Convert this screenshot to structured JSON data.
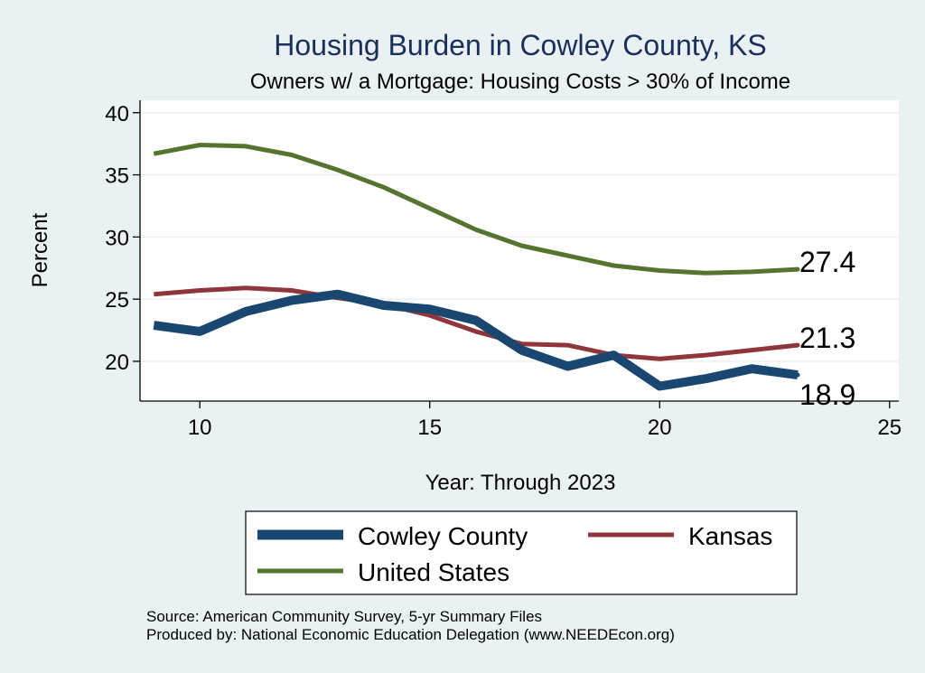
{
  "chart_data": {
    "type": "line",
    "title": "Housing Burden in Cowley County, KS",
    "subtitle": "Owners w/ a Mortgage: Housing Costs > 30% of Income",
    "xlabel": "Year: Through 2023",
    "ylabel": "Percent",
    "xlim": [
      8.7,
      25.2
    ],
    "ylim": [
      16.8,
      41.0
    ],
    "xticks": [
      10,
      15,
      20,
      25
    ],
    "yticks": [
      20,
      25,
      30,
      35,
      40
    ],
    "grid": true,
    "legend_position": "bottom",
    "x": [
      9,
      10,
      11,
      12,
      13,
      14,
      15,
      16,
      17,
      18,
      19,
      20,
      21,
      22,
      23
    ],
    "series": [
      {
        "name": "Cowley County",
        "color": "#1a476f",
        "values": [
          22.9,
          22.4,
          24.0,
          24.9,
          25.4,
          24.5,
          24.2,
          23.3,
          20.9,
          19.6,
          20.5,
          18.0,
          18.6,
          19.4,
          18.9
        ],
        "end_label": "18.9"
      },
      {
        "name": "Kansas",
        "color": "#90353b",
        "values": [
          25.4,
          25.7,
          25.9,
          25.7,
          25.1,
          24.6,
          23.7,
          22.4,
          21.4,
          21.3,
          20.5,
          20.2,
          20.5,
          20.9,
          21.3
        ],
        "end_label": "21.3"
      },
      {
        "name": "United States",
        "color": "#55752f",
        "values": [
          36.7,
          37.4,
          37.3,
          36.6,
          35.4,
          34.0,
          32.3,
          30.6,
          29.3,
          28.5,
          27.7,
          27.3,
          27.1,
          27.2,
          27.4
        ],
        "end_label": "27.4"
      }
    ],
    "notes": [
      "Source: American Community Survey, 5-yr Summary Files",
      "Produced by: National Economic Education Delegation (www.NEEDEcon.org)"
    ]
  }
}
